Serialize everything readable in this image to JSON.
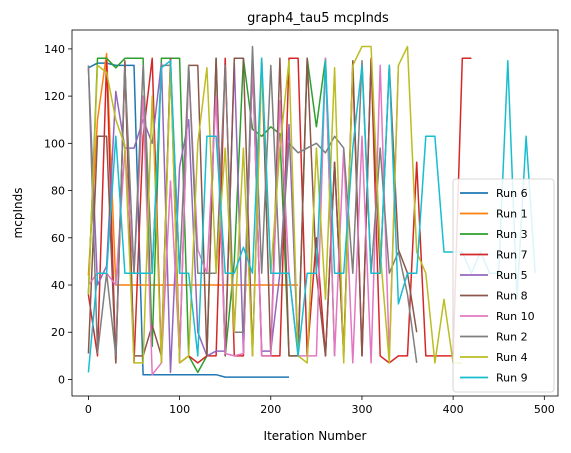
{
  "chart_data": {
    "type": "line",
    "title": "graph4_tau5 mcpInds",
    "xlabel": "Iteration Number",
    "ylabel": "mcpInds",
    "xlim": [
      -18,
      515
    ],
    "ylim": [
      -7,
      148
    ],
    "xticks": [
      0,
      100,
      200,
      300,
      400,
      500
    ],
    "yticks": [
      0,
      20,
      40,
      60,
      80,
      100,
      120,
      140
    ],
    "grid": false,
    "legend_position": "lower-right",
    "series": [
      {
        "name": "Run 6",
        "color": "#1f77b4",
        "x": [
          0,
          10,
          20,
          30,
          40,
          50,
          60,
          70,
          80,
          90,
          100,
          110,
          120,
          130,
          140,
          150,
          160,
          170,
          180,
          190,
          200,
          210,
          220
        ],
        "y": [
          132,
          134,
          134,
          133,
          133,
          133,
          2,
          2,
          2,
          2,
          2,
          2,
          2,
          2,
          2,
          1,
          1,
          1,
          1,
          1,
          1,
          1,
          1
        ]
      },
      {
        "name": "Run 1",
        "color": "#ff7f0e",
        "x": [
          0,
          10,
          20,
          30,
          40,
          50,
          60,
          70,
          80,
          90,
          100,
          110,
          120,
          130,
          140,
          150,
          160,
          170,
          180,
          190,
          200,
          210,
          220,
          230
        ],
        "y": [
          44,
          110,
          138,
          40,
          40,
          40,
          40,
          40,
          40,
          40,
          40,
          40,
          40,
          40,
          40,
          40,
          40,
          40,
          40,
          40,
          40,
          40,
          40,
          40
        ]
      },
      {
        "name": "Run 3",
        "color": "#2ca02c",
        "x": [
          0,
          10,
          20,
          30,
          40,
          50,
          60,
          70,
          80,
          90,
          100,
          110,
          120,
          130,
          140,
          150,
          160,
          170,
          180,
          190,
          200,
          210,
          220,
          230,
          240,
          250,
          260,
          270
        ],
        "y": [
          36,
          136,
          136,
          132,
          136,
          136,
          136,
          14,
          136,
          136,
          136,
          10,
          3,
          10,
          136,
          10,
          50,
          136,
          106,
          103,
          107,
          104,
          10,
          10,
          136,
          107,
          136,
          10
        ]
      },
      {
        "name": "Run 7",
        "color": "#d62728",
        "x": [
          0,
          10,
          20,
          30,
          40,
          50,
          60,
          70,
          80,
          90,
          100,
          110,
          120,
          130,
          140,
          150,
          160,
          170,
          180,
          190,
          200,
          210,
          220,
          230,
          240,
          250,
          260,
          270,
          280,
          290,
          300,
          310,
          320,
          330,
          340,
          350,
          360,
          370,
          380,
          390,
          400,
          410,
          420
        ],
        "y": [
          36,
          10,
          135,
          7,
          133,
          7,
          103,
          136,
          7,
          136,
          7,
          10,
          7,
          10,
          10,
          136,
          10,
          10,
          136,
          10,
          10,
          10,
          136,
          136,
          10,
          60,
          10,
          92,
          10,
          132,
          10,
          136,
          10,
          7,
          10,
          10,
          92,
          10,
          10,
          10,
          10,
          136,
          136
        ]
      },
      {
        "name": "Run 5",
        "color": "#9467bd",
        "x": [
          0,
          10,
          20,
          30,
          40,
          50,
          60,
          70,
          80,
          90,
          100,
          110,
          120,
          130,
          140,
          150,
          160,
          170,
          180,
          190,
          200,
          210,
          220,
          230
        ],
        "y": [
          132,
          40,
          48,
          122,
          98,
          98,
          110,
          100,
          134,
          3,
          90,
          110,
          20,
          10,
          12,
          12,
          134,
          12,
          134,
          12,
          12,
          45,
          108,
          10
        ]
      },
      {
        "name": "Run 8",
        "color": "#8c564b",
        "x": [
          0,
          10,
          20,
          30,
          40,
          50,
          60,
          70,
          80,
          90,
          100,
          110,
          120,
          130,
          140,
          150,
          160,
          170,
          180,
          190,
          200,
          210,
          220,
          230,
          240,
          250,
          260,
          270,
          280,
          290,
          300,
          310,
          320,
          330,
          340,
          350,
          360
        ],
        "y": [
          11,
          103,
          103,
          7,
          135,
          10,
          10,
          23,
          10,
          136,
          10,
          133,
          133,
          10,
          136,
          10,
          136,
          136,
          10,
          136,
          10,
          136,
          10,
          10,
          136,
          45,
          10,
          92,
          10,
          135,
          10,
          135,
          45,
          133,
          55,
          45,
          20
        ]
      },
      {
        "name": "Run 10",
        "color": "#e377c2",
        "x": [
          0,
          10,
          20,
          30,
          40,
          50,
          60,
          70,
          80,
          90,
          100,
          110,
          120,
          130,
          140,
          150,
          160,
          170,
          180,
          190,
          200,
          210,
          220,
          230,
          240,
          250,
          260,
          270,
          280,
          290,
          300,
          310,
          320,
          330,
          340
        ],
        "y": [
          40,
          45,
          45,
          40,
          97,
          45,
          120,
          2,
          7,
          84,
          10,
          132,
          55,
          45,
          120,
          11,
          10,
          11,
          136,
          10,
          10,
          118,
          45,
          10,
          10,
          10,
          136,
          10,
          98,
          7,
          103,
          7,
          133,
          10,
          133
        ]
      },
      {
        "name": "Run 2",
        "color": "#7f7f7f",
        "x": [
          0,
          10,
          20,
          30,
          40,
          50,
          60,
          70,
          80,
          90,
          100,
          110,
          120,
          130,
          140,
          150,
          160,
          170,
          180,
          190,
          200,
          210,
          220,
          230,
          240,
          250,
          260,
          270,
          280,
          290,
          300,
          310,
          320,
          330,
          340,
          350,
          360
        ],
        "y": [
          133,
          11,
          45,
          10,
          132,
          45,
          133,
          45,
          133,
          133,
          45,
          133,
          45,
          45,
          45,
          133,
          20,
          20,
          141,
          45,
          133,
          45,
          100,
          96,
          98,
          100,
          96,
          103,
          98,
          45,
          135,
          45,
          98,
          45,
          54,
          36,
          7
        ]
      },
      {
        "name": "Run 4",
        "color": "#bcbd22",
        "x": [
          0,
          10,
          20,
          30,
          40,
          50,
          60,
          70,
          80,
          90,
          100,
          110,
          120,
          130,
          140,
          150,
          160,
          170,
          180,
          190,
          200,
          210,
          220,
          230,
          240,
          250,
          260,
          270,
          280,
          290,
          300,
          310,
          320,
          330,
          340,
          350,
          360,
          370,
          380,
          390,
          400,
          410
        ],
        "y": [
          36,
          133,
          130,
          110,
          99,
          7,
          7,
          120,
          7,
          133,
          7,
          10,
          100,
          132,
          45,
          98,
          20,
          98,
          10,
          133,
          45,
          98,
          135,
          10,
          7,
          98,
          34,
          132,
          7,
          133,
          141,
          141,
          54,
          7,
          133,
          141,
          54,
          45,
          7,
          34,
          7,
          7
        ]
      },
      {
        "name": "Run 9",
        "color": "#17becf",
        "x": [
          0,
          10,
          20,
          30,
          40,
          50,
          60,
          70,
          80,
          90,
          100,
          110,
          120,
          130,
          140,
          150,
          160,
          170,
          180,
          190,
          200,
          210,
          220,
          230,
          240,
          250,
          260,
          270,
          280,
          290,
          300,
          310,
          320,
          330,
          340,
          350,
          360,
          370,
          380,
          390,
          400,
          410,
          420,
          430,
          440,
          450,
          460,
          470,
          480,
          490
        ],
        "y": [
          3,
          45,
          45,
          103,
          45,
          45,
          45,
          45,
          132,
          135,
          45,
          45,
          10,
          103,
          103,
          45,
          45,
          56,
          45,
          136,
          45,
          45,
          45,
          10,
          45,
          45,
          135,
          45,
          45,
          98,
          133,
          45,
          45,
          133,
          32,
          45,
          45,
          103,
          103,
          54,
          54,
          54,
          45,
          54,
          45,
          45,
          135,
          34,
          103,
          45
        ]
      }
    ]
  }
}
